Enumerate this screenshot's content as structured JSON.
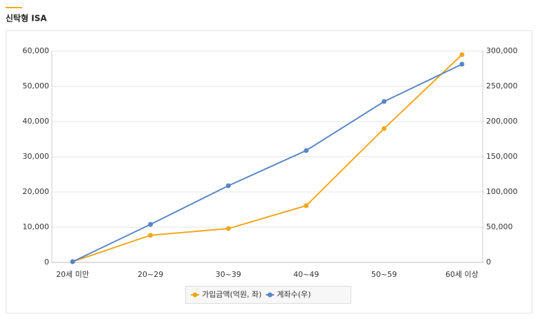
{
  "chart_data": {
    "type": "line",
    "title": "신탁형 ISA",
    "categories": [
      "20세 미만",
      "20~29",
      "30~39",
      "40~49",
      "50~59",
      "60세 이상"
    ],
    "series": [
      {
        "name": "가입금액(억원, 좌)",
        "color": "#f2a71b",
        "values": [
          200,
          7700,
          9600,
          16100,
          38000,
          59000
        ]
      },
      {
        "name": "계좌수(우)",
        "color": "#5a85c6",
        "axis": "y2",
        "values": [
          1000,
          53900,
          108800,
          158800,
          228400,
          281400
        ]
      }
    ],
    "ylim": [
      0,
      60000
    ],
    "yticks": [
      0,
      {
        "value": 10000,
        "label": "10,000"
      },
      {
        "value": 20000,
        "label": "20,000"
      },
      {
        "value": 30000,
        "label": "30,000"
      },
      {
        "value": 40000,
        "label": "40,000"
      },
      {
        "value": 50000,
        "label": "50,000"
      },
      {
        "value": 60000,
        "label": "60,000"
      }
    ],
    "y2lim": [
      0,
      300000
    ],
    "y2ticks": [
      0,
      {
        "value": 50000,
        "label": "50,000"
      },
      {
        "value": 100000,
        "label": "100,000"
      },
      {
        "value": 150000,
        "label": "150,000"
      },
      {
        "value": 200000,
        "label": "200,000"
      },
      {
        "value": 250000,
        "label": "250,000"
      },
      {
        "value": 300000,
        "label": "300,000"
      }
    ],
    "grid": true,
    "legend": "bottom"
  }
}
